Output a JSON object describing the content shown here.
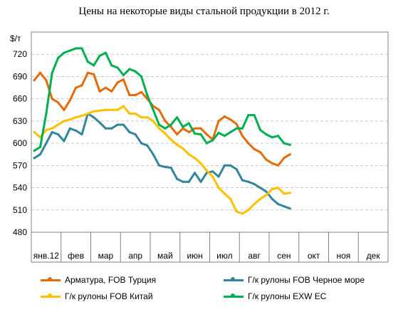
{
  "chart_data": {
    "type": "line",
    "title": "Цены на некоторые виды стальной продукции в 2012 г.",
    "ylabel": "$/т",
    "ylim": [
      480,
      750
    ],
    "yticks": [
      480,
      510,
      540,
      570,
      600,
      630,
      660,
      690,
      720
    ],
    "categories": [
      "янв.12",
      "фев",
      "мар",
      "апр",
      "май",
      "июн",
      "июл",
      "авг",
      "сен",
      "окт",
      "ноя",
      "дек"
    ],
    "grid": true,
    "legend_position": "bottom",
    "series": [
      {
        "name": "Арматура, FOB Турция",
        "color": "#E46C0A",
        "points": [
          [
            0.1,
            685
          ],
          [
            0.3,
            695
          ],
          [
            0.5,
            685
          ],
          [
            0.7,
            660
          ],
          [
            0.9,
            655
          ],
          [
            1.1,
            645
          ],
          [
            1.3,
            658
          ],
          [
            1.5,
            675
          ],
          [
            1.7,
            678
          ],
          [
            1.9,
            695
          ],
          [
            2.1,
            693
          ],
          [
            2.3,
            670
          ],
          [
            2.5,
            675
          ],
          [
            2.7,
            670
          ],
          [
            2.9,
            682
          ],
          [
            3.1,
            686
          ],
          [
            3.3,
            665
          ],
          [
            3.5,
            665
          ],
          [
            3.7,
            669
          ],
          [
            3.9,
            660
          ],
          [
            4.1,
            650
          ],
          [
            4.3,
            645
          ],
          [
            4.5,
            630
          ],
          [
            4.7,
            622
          ],
          [
            4.9,
            612
          ],
          [
            5.1,
            620
          ],
          [
            5.3,
            615
          ],
          [
            5.5,
            620
          ],
          [
            5.7,
            620
          ],
          [
            5.9,
            612
          ],
          [
            6.1,
            605
          ],
          [
            6.3,
            630
          ],
          [
            6.5,
            636
          ],
          [
            6.7,
            632
          ],
          [
            6.9,
            626
          ],
          [
            7.1,
            610
          ],
          [
            7.3,
            600
          ],
          [
            7.5,
            592
          ],
          [
            7.7,
            588
          ],
          [
            7.9,
            578
          ],
          [
            8.1,
            573
          ],
          [
            8.3,
            570
          ],
          [
            8.5,
            580
          ],
          [
            8.7,
            585
          ]
        ]
      },
      {
        "name": "Г/к рулоны FOB Черное море",
        "color": "#31859C",
        "points": [
          [
            0.1,
            580
          ],
          [
            0.3,
            585
          ],
          [
            0.5,
            600
          ],
          [
            0.7,
            615
          ],
          [
            0.9,
            612
          ],
          [
            1.1,
            603
          ],
          [
            1.3,
            620
          ],
          [
            1.5,
            617
          ],
          [
            1.7,
            612
          ],
          [
            1.9,
            640
          ],
          [
            2.1,
            635
          ],
          [
            2.3,
            628
          ],
          [
            2.5,
            620
          ],
          [
            2.7,
            620
          ],
          [
            2.9,
            625
          ],
          [
            3.1,
            625
          ],
          [
            3.3,
            615
          ],
          [
            3.5,
            612
          ],
          [
            3.7,
            600
          ],
          [
            3.9,
            597
          ],
          [
            4.1,
            585
          ],
          [
            4.3,
            570
          ],
          [
            4.5,
            568
          ],
          [
            4.7,
            567
          ],
          [
            4.9,
            552
          ],
          [
            5.1,
            548
          ],
          [
            5.3,
            548
          ],
          [
            5.5,
            560
          ],
          [
            5.7,
            548
          ],
          [
            5.9,
            560
          ],
          [
            6.1,
            562
          ],
          [
            6.3,
            555
          ],
          [
            6.5,
            570
          ],
          [
            6.7,
            570
          ],
          [
            6.9,
            565
          ],
          [
            7.1,
            550
          ],
          [
            7.3,
            548
          ],
          [
            7.5,
            545
          ],
          [
            7.7,
            540
          ],
          [
            7.9,
            535
          ],
          [
            8.1,
            525
          ],
          [
            8.3,
            518
          ],
          [
            8.5,
            515
          ],
          [
            8.7,
            512
          ]
        ]
      },
      {
        "name": "Г/к рулоны FOB Китай",
        "color": "#FFC000",
        "points": [
          [
            0.1,
            615
          ],
          [
            0.3,
            608
          ],
          [
            0.5,
            618
          ],
          [
            0.7,
            620
          ],
          [
            0.9,
            625
          ],
          [
            1.1,
            630
          ],
          [
            1.3,
            632
          ],
          [
            1.5,
            635
          ],
          [
            1.7,
            637
          ],
          [
            1.9,
            640
          ],
          [
            2.1,
            643
          ],
          [
            2.3,
            644
          ],
          [
            2.5,
            645
          ],
          [
            2.7,
            645
          ],
          [
            2.9,
            645
          ],
          [
            3.1,
            650
          ],
          [
            3.3,
            640
          ],
          [
            3.5,
            640
          ],
          [
            3.7,
            635
          ],
          [
            3.9,
            635
          ],
          [
            4.1,
            630
          ],
          [
            4.3,
            620
          ],
          [
            4.5,
            613
          ],
          [
            4.7,
            605
          ],
          [
            4.9,
            598
          ],
          [
            5.1,
            593
          ],
          [
            5.3,
            585
          ],
          [
            5.5,
            580
          ],
          [
            5.7,
            573
          ],
          [
            5.9,
            563
          ],
          [
            6.1,
            555
          ],
          [
            6.3,
            540
          ],
          [
            6.5,
            532
          ],
          [
            6.7,
            525
          ],
          [
            6.9,
            508
          ],
          [
            7.1,
            505
          ],
          [
            7.3,
            510
          ],
          [
            7.5,
            518
          ],
          [
            7.7,
            525
          ],
          [
            7.9,
            530
          ],
          [
            8.1,
            538
          ],
          [
            8.3,
            540
          ],
          [
            8.5,
            532
          ],
          [
            8.7,
            533
          ]
        ]
      },
      {
        "name": "Г/к рулоны EXW ЕС",
        "color": "#00B050",
        "points": [
          [
            0.1,
            590
          ],
          [
            0.3,
            595
          ],
          [
            0.5,
            640
          ],
          [
            0.7,
            695
          ],
          [
            0.9,
            715
          ],
          [
            1.1,
            722
          ],
          [
            1.3,
            725
          ],
          [
            1.5,
            728
          ],
          [
            1.7,
            728
          ],
          [
            1.9,
            710
          ],
          [
            2.1,
            705
          ],
          [
            2.3,
            718
          ],
          [
            2.5,
            722
          ],
          [
            2.7,
            705
          ],
          [
            2.9,
            702
          ],
          [
            3.1,
            692
          ],
          [
            3.3,
            700
          ],
          [
            3.5,
            697
          ],
          [
            3.7,
            690
          ],
          [
            3.9,
            665
          ],
          [
            4.1,
            645
          ],
          [
            4.3,
            625
          ],
          [
            4.5,
            620
          ],
          [
            4.7,
            625
          ],
          [
            4.9,
            635
          ],
          [
            5.1,
            622
          ],
          [
            5.3,
            627
          ],
          [
            5.5,
            613
          ],
          [
            5.7,
            612
          ],
          [
            5.9,
            600
          ],
          [
            6.1,
            604
          ],
          [
            6.3,
            614
          ],
          [
            6.5,
            610
          ],
          [
            6.7,
            615
          ],
          [
            6.9,
            620
          ],
          [
            7.1,
            620
          ],
          [
            7.3,
            638
          ],
          [
            7.5,
            638
          ],
          [
            7.7,
            618
          ],
          [
            7.9,
            612
          ],
          [
            8.1,
            608
          ],
          [
            8.3,
            610
          ],
          [
            8.5,
            600
          ],
          [
            8.7,
            598
          ]
        ]
      }
    ]
  }
}
